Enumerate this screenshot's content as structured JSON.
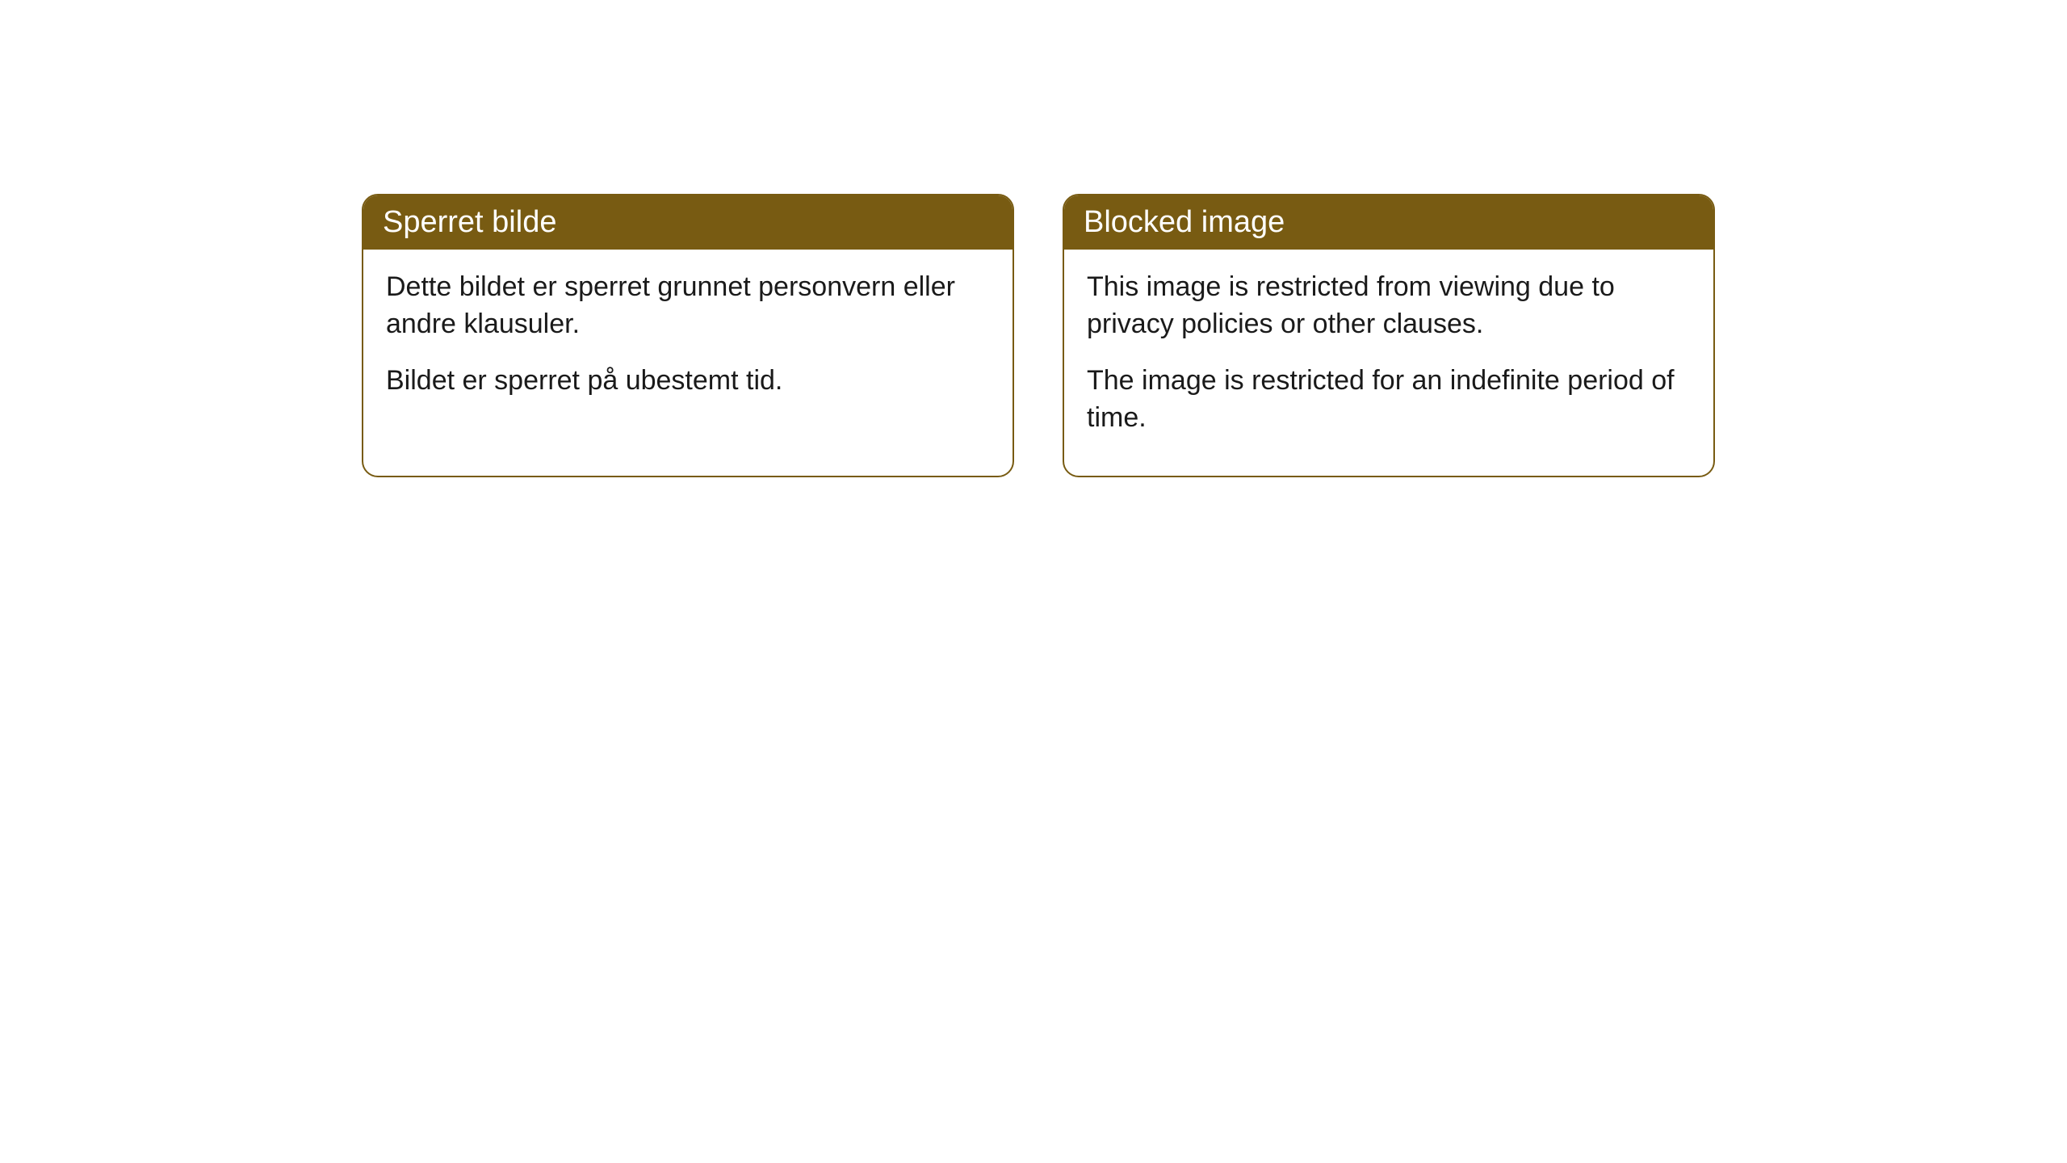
{
  "cards": [
    {
      "title": "Sperret bilde",
      "paragraph1": "Dette bildet er sperret grunnet personvern eller andre klausuler.",
      "paragraph2": "Bildet er sperret på ubestemt tid."
    },
    {
      "title": "Blocked image",
      "paragraph1": "This image is restricted from viewing due to privacy policies or other clauses.",
      "paragraph2": "The image is restricted for an indefinite period of time."
    }
  ],
  "styling": {
    "header_bg_color": "#785b12",
    "header_text_color": "#ffffff",
    "border_color": "#785b12",
    "body_bg_color": "#ffffff",
    "text_color": "#1a1a1a",
    "border_radius": 20,
    "title_fontsize": 38,
    "body_fontsize": 34
  }
}
